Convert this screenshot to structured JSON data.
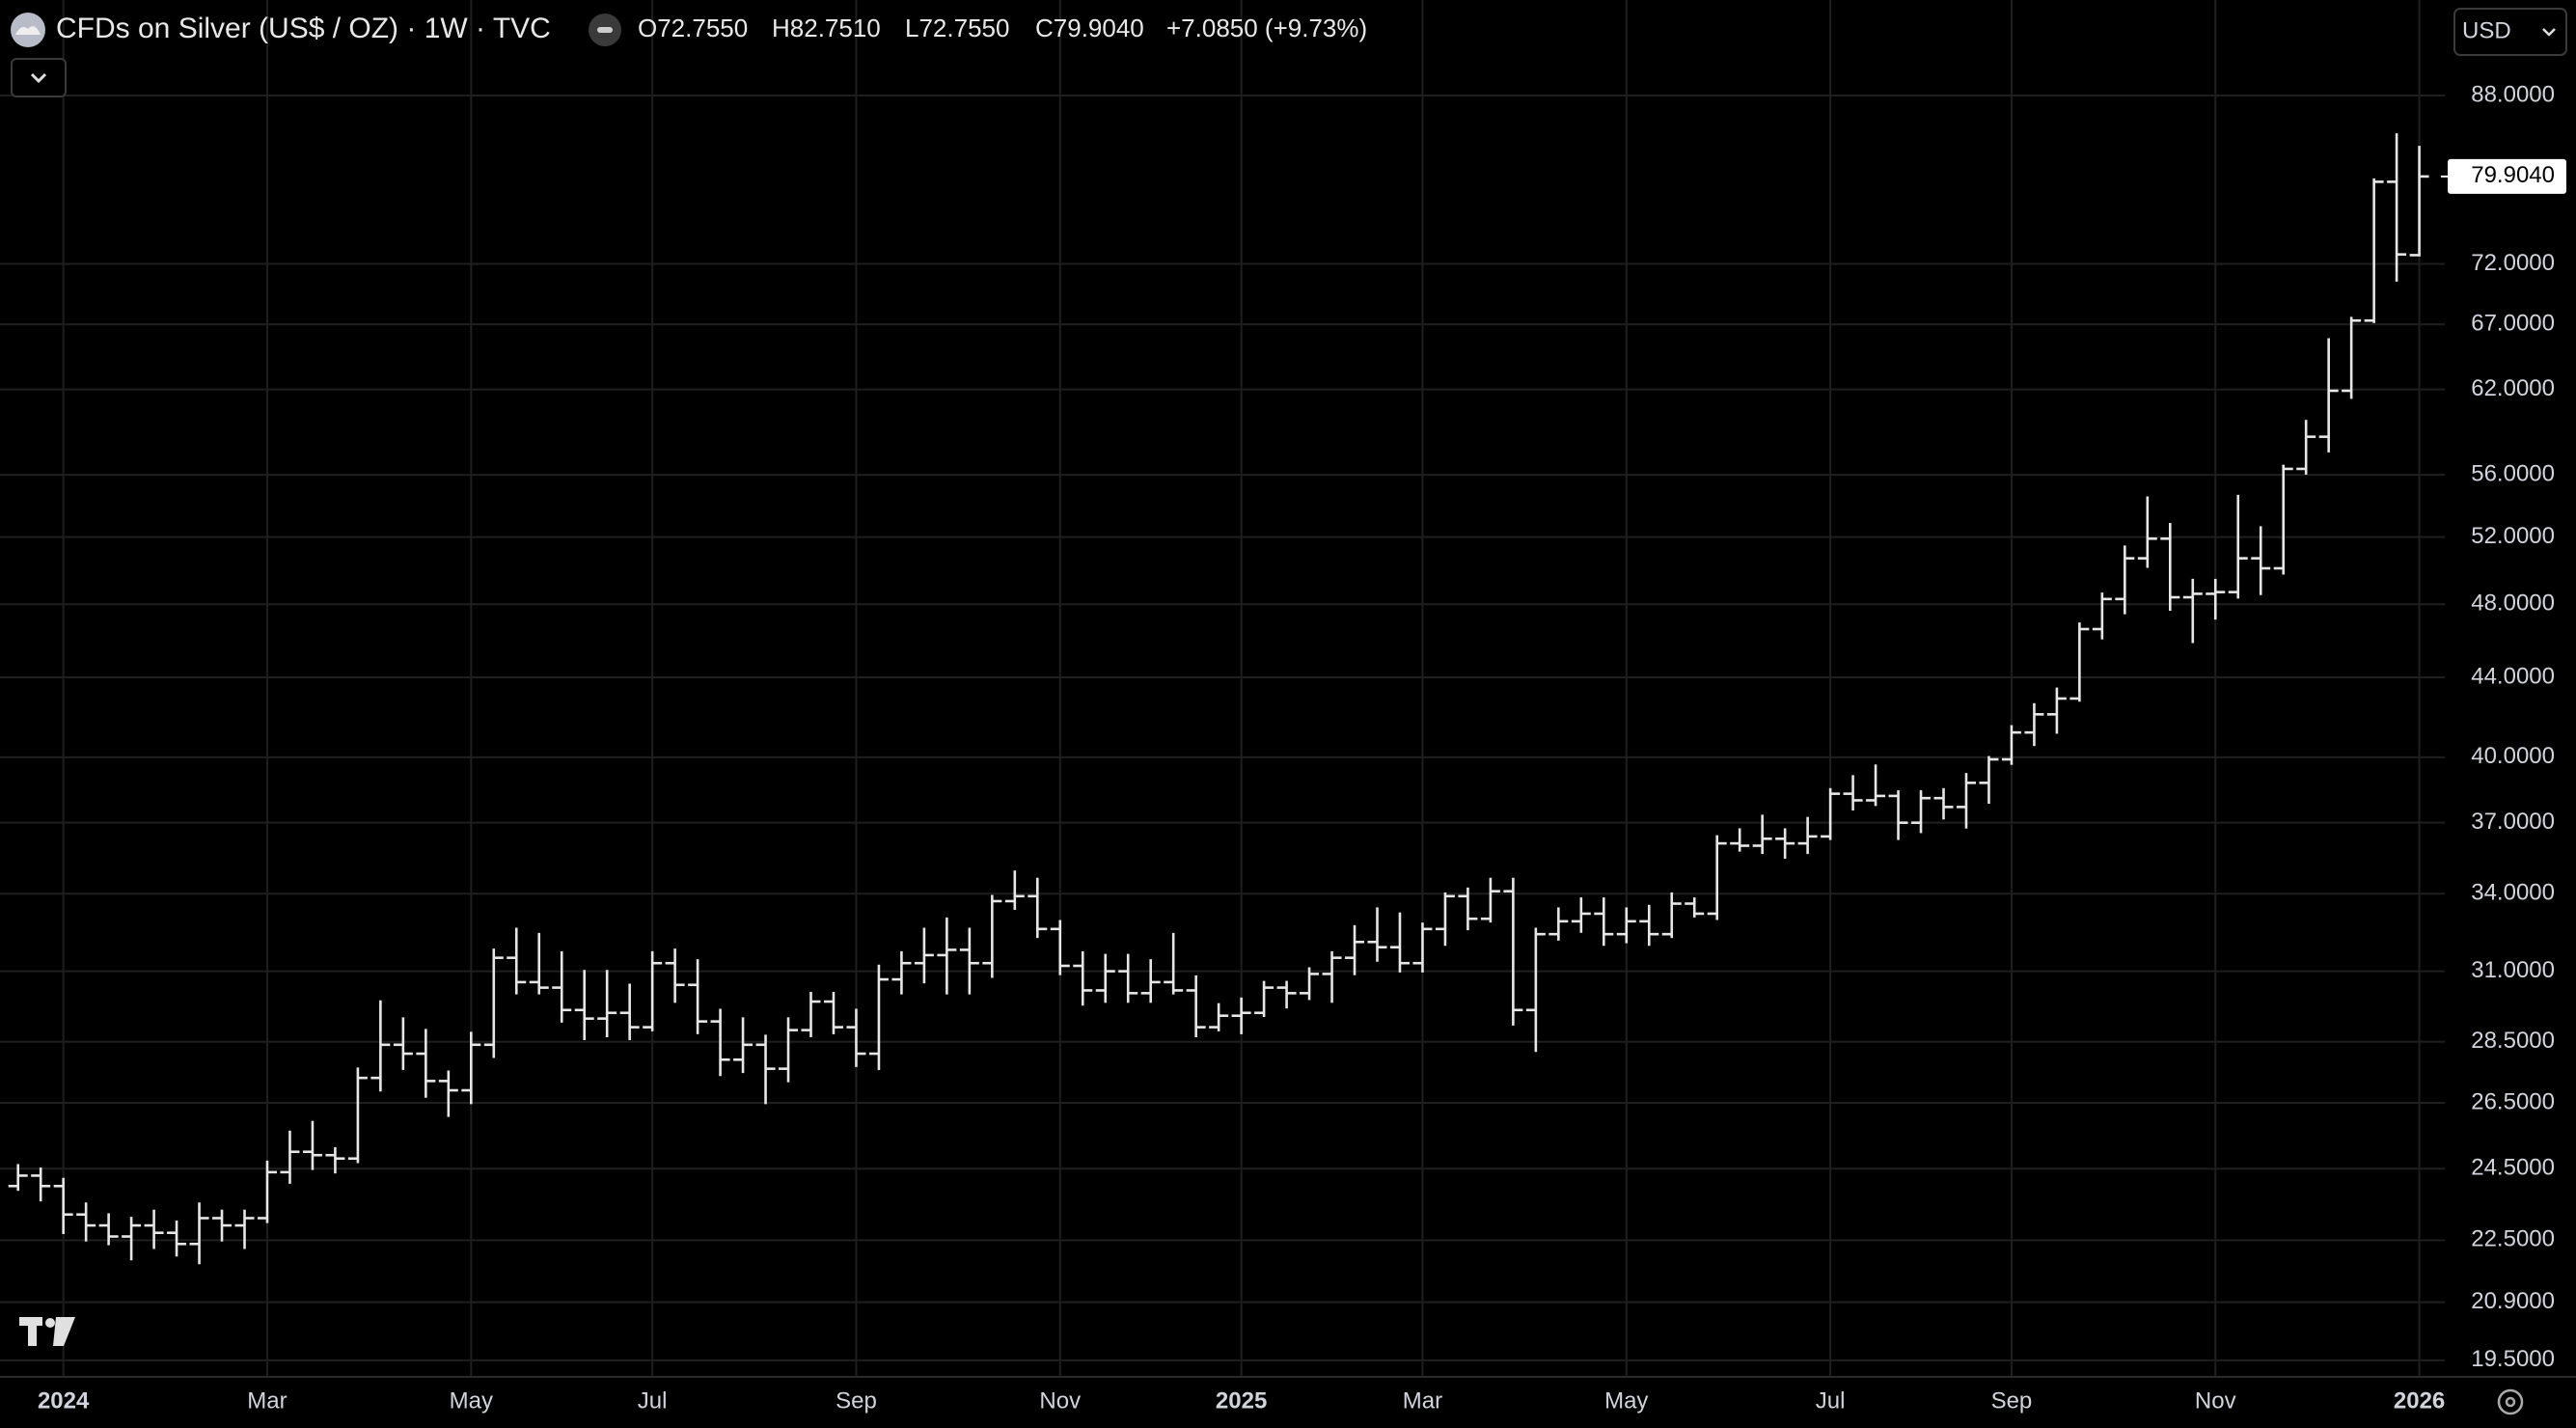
{
  "header": {
    "title": "CFDs on Silver (US$ / OZ) · 1W · TVC",
    "legend_values": [
      "O72.7550",
      "H82.7510",
      "L72.7550",
      "C79.9040",
      "+7.0850 (+9.73%)"
    ],
    "currency": "USD"
  },
  "chart_data": {
    "type": "ohlc",
    "color": "#e6e6e6",
    "grid": true,
    "log_scale": true,
    "categories": [
      null,
      null,
      "2024",
      null,
      null,
      null,
      null,
      null,
      null,
      null,
      null,
      "Mar",
      null,
      null,
      null,
      null,
      null,
      null,
      null,
      null,
      "May",
      null,
      null,
      null,
      null,
      null,
      null,
      null,
      "Jul",
      null,
      null,
      null,
      null,
      null,
      null,
      null,
      null,
      "Sep",
      null,
      null,
      null,
      null,
      null,
      null,
      null,
      null,
      "Nov",
      null,
      null,
      null,
      null,
      null,
      null,
      null,
      "2025",
      null,
      null,
      null,
      null,
      null,
      null,
      null,
      "Mar",
      null,
      null,
      null,
      null,
      null,
      null,
      null,
      null,
      "May",
      null,
      null,
      null,
      null,
      null,
      null,
      null,
      null,
      "Jul",
      null,
      null,
      null,
      null,
      null,
      null,
      null,
      "Sep",
      null,
      null,
      null,
      null,
      null,
      null,
      null,
      null,
      "Nov",
      null,
      null,
      null,
      null,
      null,
      null,
      null,
      null,
      "2026"
    ],
    "open": [
      24.0,
      24.3,
      24.0,
      23.2,
      22.9,
      22.6,
      22.9,
      22.7,
      22.4,
      23.1,
      22.9,
      23.1,
      24.4,
      25.0,
      24.9,
      24.8,
      27.3,
      28.4,
      28.1,
      27.2,
      26.9,
      28.4,
      31.5,
      30.6,
      30.4,
      29.6,
      29.3,
      29.5,
      29.0,
      31.3,
      30.5,
      29.2,
      27.9,
      28.4,
      27.6,
      28.9,
      29.9,
      29.0,
      28.1,
      30.7,
      31.3,
      31.6,
      31.8,
      31.3,
      33.7,
      33.9,
      32.6,
      31.2,
      30.3,
      31.0,
      30.2,
      30.6,
      30.3,
      29.0,
      29.4,
      29.5,
      30.4,
      30.2,
      30.9,
      31.5,
      32.1,
      31.9,
      31.3,
      32.6,
      33.9,
      33.0,
      34.1,
      29.6,
      32.4,
      32.9,
      33.2,
      32.4,
      32.9,
      32.4,
      33.6,
      33.2,
      36.1,
      36.0,
      36.3,
      36.1,
      36.4,
      38.3,
      38.0,
      38.2,
      37.0,
      38.1,
      37.7,
      38.8,
      39.9,
      41.2,
      42.1,
      42.9,
      46.6,
      48.3,
      50.7,
      51.9,
      48.4,
      48.6,
      48.7,
      50.7,
      50.1,
      56.4,
      58.6,
      61.9,
      67.3,
      79.4,
      72.755
    ],
    "high": [
      24.6,
      24.5,
      24.2,
      23.5,
      23.2,
      23.1,
      23.3,
      23.0,
      23.5,
      23.3,
      23.3,
      24.7,
      25.6,
      25.9,
      25.1,
      27.6,
      29.9,
      29.3,
      28.9,
      27.5,
      28.8,
      31.8,
      32.6,
      32.4,
      31.7,
      31.0,
      31.0,
      30.5,
      31.7,
      31.8,
      31.4,
      29.6,
      29.3,
      28.7,
      29.3,
      30.2,
      30.2,
      29.6,
      31.2,
      31.7,
      32.6,
      33.0,
      32.6,
      33.9,
      34.9,
      34.6,
      32.9,
      31.7,
      31.6,
      31.6,
      31.4,
      32.4,
      30.8,
      29.8,
      30.0,
      30.6,
      30.6,
      31.1,
      31.7,
      32.7,
      33.4,
      33.2,
      32.8,
      34.0,
      34.2,
      34.6,
      34.6,
      32.6,
      33.4,
      33.8,
      33.8,
      33.4,
      33.5,
      34.0,
      33.8,
      36.4,
      36.7,
      37.3,
      36.7,
      37.2,
      38.5,
      39.1,
      39.6,
      38.4,
      38.4,
      38.5,
      39.2,
      40.0,
      41.5,
      42.6,
      43.4,
      46.9,
      48.6,
      51.4,
      54.5,
      52.8,
      49.4,
      49.4,
      54.6,
      52.6,
      56.6,
      59.7,
      65.8,
      67.5,
      79.6,
      84.0,
      82.751
    ],
    "low": [
      23.9,
      23.6,
      22.7,
      22.5,
      22.4,
      22.0,
      22.3,
      22.1,
      21.9,
      22.5,
      22.3,
      23.0,
      24.1,
      24.5,
      24.4,
      24.7,
      26.9,
      27.6,
      26.7,
      26.1,
      26.5,
      28.0,
      30.2,
      30.2,
      29.2,
      28.6,
      28.7,
      28.6,
      28.9,
      29.9,
      28.8,
      27.4,
      27.5,
      26.5,
      27.2,
      28.7,
      28.8,
      27.7,
      27.6,
      30.2,
      30.6,
      30.2,
      30.2,
      30.8,
      33.4,
      32.3,
      30.9,
      29.8,
      29.9,
      29.9,
      29.9,
      30.2,
      28.7,
      28.9,
      28.8,
      29.4,
      29.7,
      30.0,
      29.9,
      30.9,
      31.4,
      31.0,
      31.0,
      32.0,
      32.6,
      32.9,
      29.1,
      28.2,
      32.2,
      32.5,
      32.0,
      32.1,
      32.0,
      32.3,
      33.1,
      33.0,
      35.8,
      35.7,
      35.5,
      35.7,
      36.3,
      37.6,
      37.8,
      36.3,
      36.6,
      37.2,
      36.8,
      37.9,
      39.7,
      40.6,
      41.2,
      42.8,
      46.1,
      47.5,
      50.2,
      47.7,
      45.9,
      47.2,
      48.4,
      48.6,
      49.8,
      56.1,
      57.6,
      61.4,
      67.2,
      70.6,
      72.755
    ],
    "close": [
      24.3,
      24.0,
      23.2,
      22.9,
      22.6,
      22.9,
      22.7,
      22.4,
      23.1,
      22.9,
      23.1,
      24.4,
      25.0,
      24.9,
      24.8,
      27.3,
      28.4,
      28.1,
      27.2,
      26.9,
      28.4,
      31.5,
      30.6,
      30.4,
      29.6,
      29.3,
      29.5,
      29.0,
      31.3,
      30.5,
      29.2,
      27.9,
      28.4,
      27.6,
      28.9,
      29.9,
      29.0,
      28.1,
      30.7,
      31.3,
      31.6,
      31.8,
      31.3,
      33.7,
      33.9,
      32.6,
      31.2,
      30.3,
      31.0,
      30.2,
      30.6,
      30.3,
      29.0,
      29.4,
      29.5,
      30.4,
      30.2,
      30.9,
      31.5,
      32.1,
      31.9,
      31.3,
      32.6,
      33.9,
      33.0,
      34.1,
      29.6,
      32.4,
      32.9,
      33.2,
      32.4,
      32.9,
      32.4,
      33.6,
      33.2,
      36.1,
      36.0,
      36.3,
      36.1,
      36.4,
      38.3,
      38.0,
      38.2,
      37.0,
      38.1,
      37.7,
      38.8,
      39.9,
      41.2,
      42.1,
      42.9,
      46.6,
      48.3,
      50.7,
      51.9,
      48.4,
      48.6,
      48.7,
      50.7,
      50.1,
      56.4,
      58.6,
      61.9,
      67.3,
      79.4,
      72.819,
      79.904
    ],
    "ylim": [
      19.12,
      98.6
    ],
    "yticks": [
      {
        "value": 19.5,
        "label": "19.5000"
      },
      {
        "value": 20.9,
        "label": "20.9000"
      },
      {
        "value": 22.5,
        "label": "22.5000"
      },
      {
        "value": 24.5,
        "label": "24.5000"
      },
      {
        "value": 26.5,
        "label": "26.5000"
      },
      {
        "value": 28.5,
        "label": "28.5000"
      },
      {
        "value": 31,
        "label": "31.0000"
      },
      {
        "value": 34,
        "label": "34.0000"
      },
      {
        "value": 37,
        "label": "37.0000"
      },
      {
        "value": 40,
        "label": "40.0000"
      },
      {
        "value": 44,
        "label": "44.0000"
      },
      {
        "value": 48,
        "label": "48.0000"
      },
      {
        "value": 52,
        "label": "52.0000"
      },
      {
        "value": 56,
        "label": "56.0000"
      },
      {
        "value": 62,
        "label": "62.0000"
      },
      {
        "value": 67,
        "label": "67.0000"
      },
      {
        "value": 72,
        "label": "72.0000"
      },
      {
        "value": 88,
        "label": "88.0000"
      }
    ],
    "last_price": {
      "value": 79.904,
      "label": "79.9040"
    }
  }
}
